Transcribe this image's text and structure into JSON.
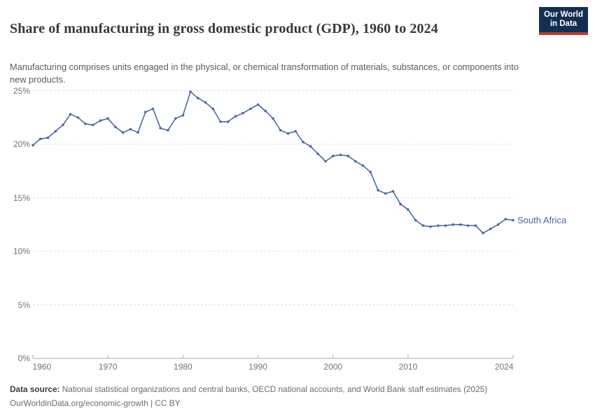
{
  "header": {
    "title": "Share of manufacturing in gross domestic product (GDP), 1960 to 2024",
    "subtitle": "Manufacturing comprises units engaged in the physical, or chemical transformation of materials, substances, or components into new products.",
    "logo": {
      "line1": "Our World",
      "line2": "in Data",
      "bg_color": "#142E52",
      "accent_color": "#C0392B"
    }
  },
  "chart_data": {
    "type": "line",
    "title": "Share of manufacturing in gross domestic product (GDP), 1960 to 2024",
    "xlabel": "",
    "ylabel": "",
    "xlim": [
      1960,
      2024
    ],
    "ylim": [
      0,
      25
    ],
    "grid": "horizontal-dashed",
    "legend_position": "end-of-line",
    "x_ticks": [
      1960,
      1970,
      1980,
      1990,
      2000,
      2010,
      2024
    ],
    "y_ticks": [
      {
        "v": 0,
        "label": "0%"
      },
      {
        "v": 5,
        "label": "5%"
      },
      {
        "v": 10,
        "label": "10%"
      },
      {
        "v": 15,
        "label": "15%"
      },
      {
        "v": 20,
        "label": "20%"
      },
      {
        "v": 25,
        "label": "25%"
      }
    ],
    "series": [
      {
        "name": "South Africa",
        "color": "#4C6A9C",
        "x": [
          1960,
          1961,
          1962,
          1963,
          1964,
          1965,
          1966,
          1967,
          1968,
          1969,
          1970,
          1971,
          1972,
          1973,
          1974,
          1975,
          1976,
          1977,
          1978,
          1979,
          1980,
          1981,
          1982,
          1983,
          1984,
          1985,
          1986,
          1987,
          1988,
          1989,
          1990,
          1991,
          1992,
          1993,
          1994,
          1995,
          1996,
          1997,
          1998,
          1999,
          2000,
          2001,
          2002,
          2003,
          2004,
          2005,
          2006,
          2007,
          2008,
          2009,
          2010,
          2011,
          2012,
          2013,
          2014,
          2015,
          2016,
          2017,
          2018,
          2019,
          2020,
          2021,
          2022,
          2023,
          2024
        ],
        "values": [
          19.9,
          20.5,
          20.6,
          21.2,
          21.8,
          22.8,
          22.5,
          21.9,
          21.8,
          22.2,
          22.4,
          21.6,
          21.1,
          21.4,
          21.1,
          23.0,
          23.3,
          21.5,
          21.3,
          22.4,
          22.7,
          24.9,
          24.3,
          23.9,
          23.3,
          22.1,
          22.1,
          22.6,
          22.9,
          23.3,
          23.7,
          23.1,
          22.4,
          21.3,
          21.0,
          21.2,
          20.2,
          19.8,
          19.1,
          18.4,
          18.9,
          19.0,
          18.9,
          18.4,
          18.0,
          17.4,
          15.7,
          15.4,
          15.6,
          14.4,
          13.9,
          12.9,
          12.4,
          12.3,
          12.4,
          12.4,
          12.5,
          12.5,
          12.4,
          12.4,
          11.7,
          12.1,
          12.5,
          13.0,
          12.9
        ]
      }
    ],
    "colors": {
      "grid": "#dcdcdc",
      "axis": "#a9a9a9",
      "axis_text": "#737373"
    }
  },
  "footer": {
    "source_label": "Data source:",
    "source_text": " National statistical organizations and central banks, OECD national accounts, and World Bank staff estimates (2025)",
    "link_line": "OurWorldinData.org/economic-growth | CC BY"
  }
}
